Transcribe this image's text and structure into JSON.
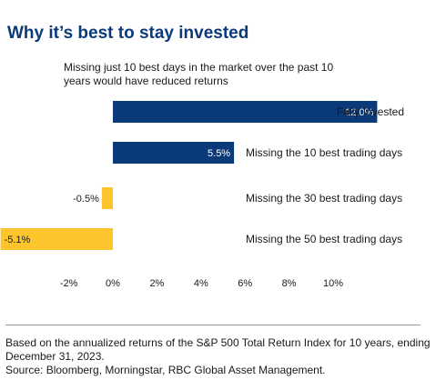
{
  "chart_data": {
    "type": "bar",
    "orientation": "horizontal",
    "title": "Why it’s best to stay invested",
    "subtitle": "Missing just 10 best days in the market over the past 10 years would have reduced returns",
    "categories": [
      "Fully Invested",
      "Missing the 10 best trading days",
      "Missing the 30 best trading days",
      "Missing the 50 best trading days"
    ],
    "values": [
      12.0,
      5.5,
      -0.5,
      -5.1
    ],
    "value_labels": [
      "12.0%",
      "5.5%",
      "-0.5%",
      "-5.1%"
    ],
    "xticks": [
      -2,
      0,
      2,
      4,
      6,
      8,
      10
    ],
    "xtick_labels": [
      "-2%",
      "0%",
      "2%",
      "4%",
      "6%",
      "8%",
      "10%"
    ],
    "xlim": [
      -2,
      10
    ],
    "grid": false,
    "colors": {
      "positive": "#0b3a7a",
      "negative": "#fcc52c",
      "title": "#0b3a7a"
    }
  },
  "footnote": {
    "line1": "Based on the annualized returns of the S&P 500 Total Return Index for 10 years, ending December 31, 2023.",
    "line2": "Source: Bloomberg, Morningstar, RBC Global Asset Management."
  }
}
